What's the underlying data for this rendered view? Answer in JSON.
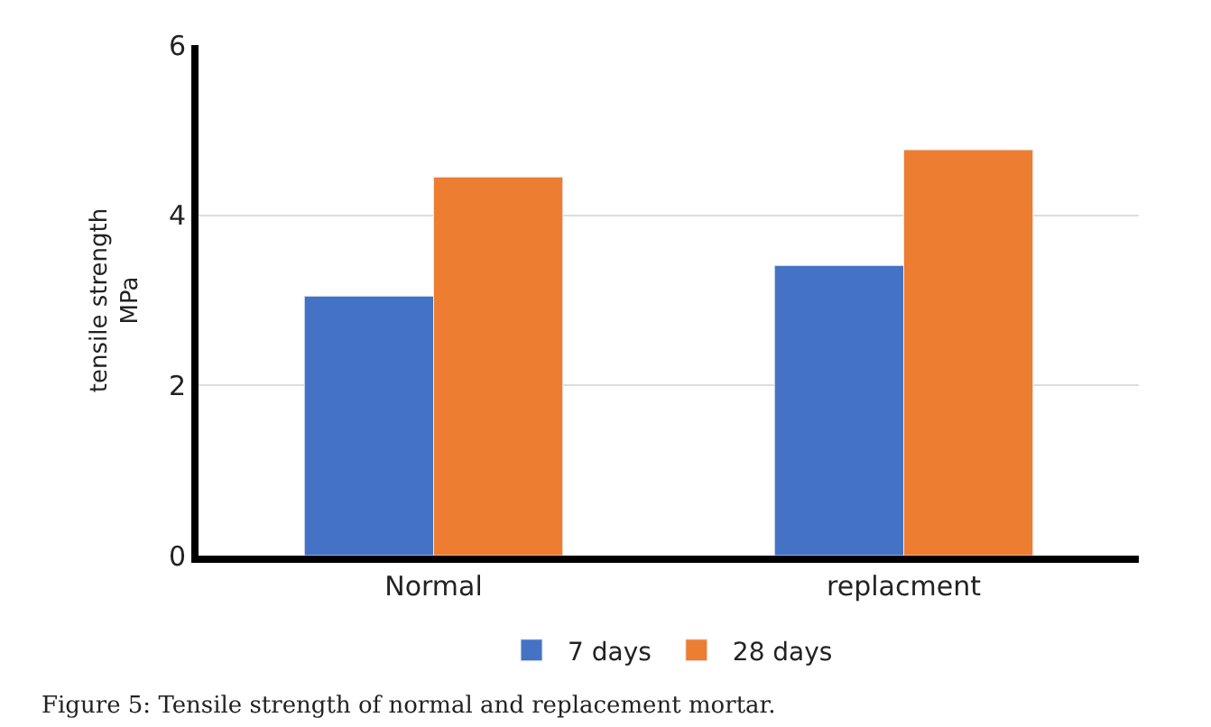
{
  "chart_data": {
    "type": "bar",
    "categories": [
      "Normal",
      "replacment"
    ],
    "series": [
      {
        "name": "7 days",
        "color": "#4472c4",
        "values": [
          3.05,
          3.41
        ]
      },
      {
        "name": "28 days",
        "color": "#ed7d31",
        "values": [
          4.45,
          4.77
        ]
      }
    ],
    "ylabel": "tensile strength\nMPa",
    "ylim": [
      0,
      6
    ],
    "yticks": [
      0,
      2,
      4,
      6
    ],
    "grid": "y",
    "legend": "bottom",
    "annotations": [
      "Figure 5: Tensile strength of normal and replacement mortar."
    ]
  }
}
